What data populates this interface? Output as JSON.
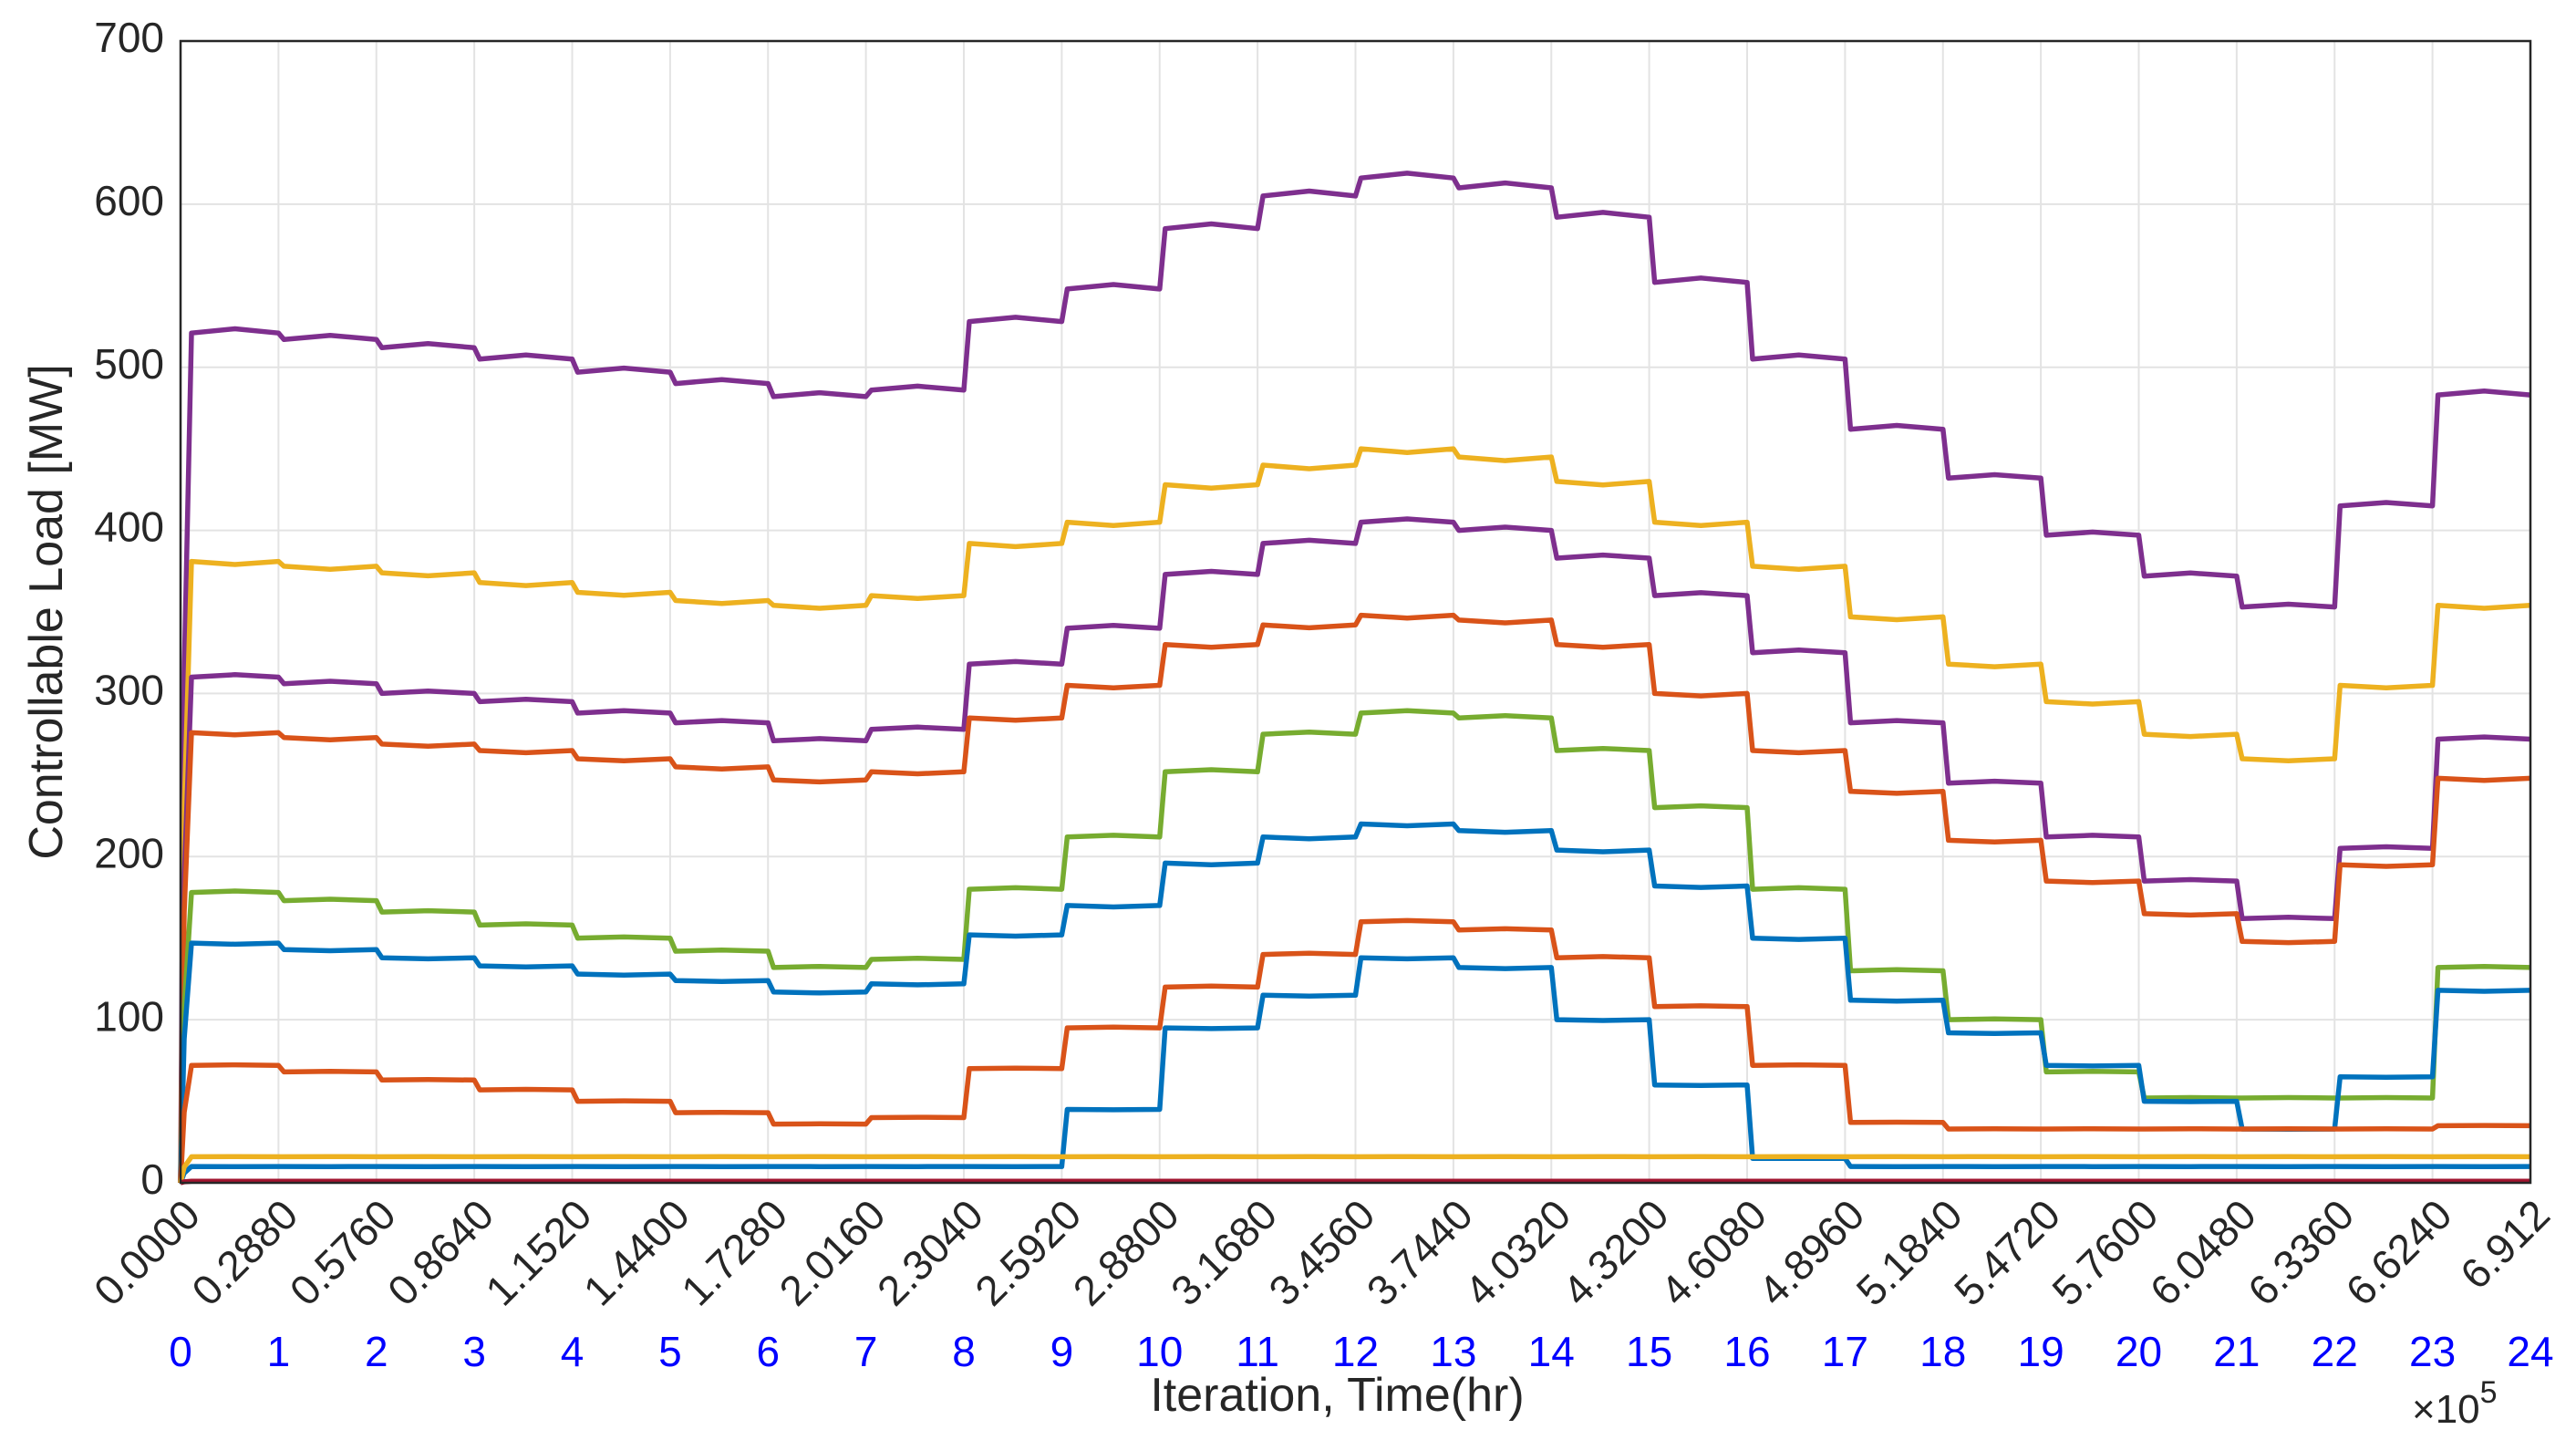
{
  "chart_data": {
    "type": "line",
    "xlabel": "Iteration, Time(hr)",
    "ylabel": "Controllable Load [MW]",
    "xlim": [
      0,
      691200
    ],
    "ylim": [
      0,
      700
    ],
    "x_exponent_label": "×10",
    "x_exponent_power": "5",
    "grid": true,
    "ytick_labels": [
      "0",
      "100",
      "200",
      "300",
      "400",
      "500",
      "600",
      "700"
    ],
    "xtick_labels": [
      "0.0000",
      "0.2880",
      "0.5760",
      "0.8640",
      "1.1520",
      "1.4400",
      "1.7280",
      "2.0160",
      "2.3040",
      "2.5920",
      "2.8800",
      "3.1680",
      "3.4560",
      "3.7440",
      "4.0320",
      "4.3200",
      "4.6080",
      "4.8960",
      "5.1840",
      "5.4720",
      "5.7600",
      "6.0480",
      "6.3360",
      "6.6240",
      "6.912"
    ],
    "hour_labels": [
      "0",
      "1",
      "2",
      "3",
      "4",
      "5",
      "6",
      "7",
      "8",
      "9",
      "10",
      "11",
      "12",
      "13",
      "14",
      "15",
      "16",
      "17",
      "18",
      "19",
      "20",
      "21",
      "22",
      "23",
      "24"
    ],
    "hours": [
      0,
      1,
      2,
      3,
      4,
      5,
      6,
      7,
      8,
      9,
      10,
      11,
      12,
      13,
      14,
      15,
      16,
      17,
      18,
      19,
      20,
      21,
      22,
      23,
      24
    ],
    "series": [
      {
        "color": "#7e2f8e",
        "values": [
          521,
          517,
          512,
          505,
          497,
          490,
          482,
          486,
          528,
          548,
          585,
          605,
          616,
          610,
          592,
          552,
          505,
          462,
          432,
          397,
          372,
          353,
          415,
          483
        ]
      },
      {
        "color": "#edb120",
        "values": [
          381,
          378,
          374,
          368,
          362,
          357,
          354,
          360,
          392,
          405,
          428,
          440,
          450,
          445,
          430,
          405,
          378,
          347,
          318,
          295,
          275,
          260,
          305,
          354
        ]
      },
      {
        "color": "#7e2f8e",
        "values": [
          310,
          306,
          300,
          295,
          288,
          282,
          271,
          278,
          318,
          340,
          373,
          392,
          405,
          400,
          383,
          360,
          325,
          282,
          245,
          212,
          185,
          162,
          205,
          272
        ]
      },
      {
        "color": "#d95319",
        "values": [
          276,
          273,
          269,
          265,
          260,
          255,
          247,
          252,
          285,
          305,
          330,
          342,
          348,
          345,
          330,
          300,
          265,
          240,
          210,
          185,
          165,
          148,
          195,
          248
        ]
      },
      {
        "color": "#77ac30",
        "values": [
          178,
          173,
          166,
          158,
          150,
          142,
          132,
          137,
          180,
          212,
          252,
          275,
          288,
          285,
          265,
          230,
          180,
          130,
          100,
          68,
          52,
          52,
          52,
          132
        ]
      },
      {
        "color": "#0072bd",
        "values": [
          147,
          143,
          138,
          133,
          128,
          124,
          117,
          122,
          152,
          170,
          196,
          212,
          220,
          216,
          204,
          182,
          150,
          112,
          92,
          72,
          50,
          33,
          65,
          118
        ]
      },
      {
        "color": "#d95319",
        "values": [
          72,
          68,
          63,
          57,
          50,
          43,
          36,
          40,
          70,
          95,
          120,
          140,
          160,
          155,
          138,
          108,
          72,
          37,
          33,
          33,
          33,
          33,
          33,
          35
        ]
      },
      {
        "color": "#0072bd",
        "values": [
          10,
          10,
          10,
          10,
          10,
          10,
          10,
          10,
          10,
          45,
          95,
          115,
          138,
          132,
          100,
          60,
          15,
          10,
          10,
          10,
          10,
          10,
          10,
          10
        ]
      },
      {
        "color": "#edb120",
        "values": [
          16,
          16,
          16,
          16,
          16,
          16,
          16,
          16,
          16,
          16,
          16,
          16,
          16,
          16,
          16,
          16,
          16,
          16,
          16,
          16,
          16,
          16,
          16,
          16
        ]
      },
      {
        "color": "#a2142f",
        "values": [
          1,
          1,
          1,
          1,
          1,
          1,
          1,
          1,
          1,
          1,
          1,
          1,
          1,
          1,
          1,
          1,
          1,
          1,
          1,
          1,
          1,
          1,
          1,
          1
        ]
      }
    ]
  }
}
